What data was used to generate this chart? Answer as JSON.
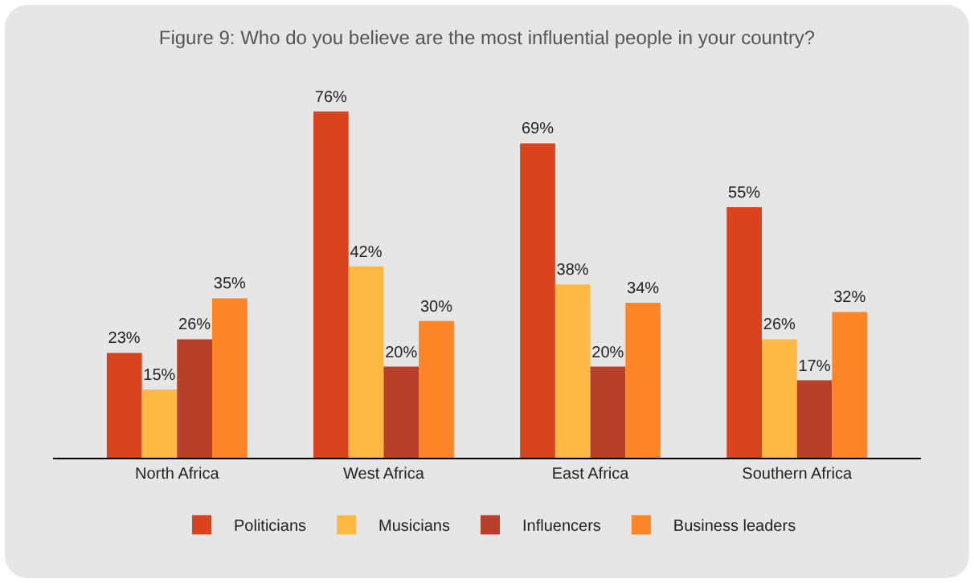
{
  "chart_data": {
    "type": "bar",
    "title": "Figure 9: Who do you believe are the most influential people in your country?",
    "categories": [
      "North Africa",
      "West Africa",
      "East Africa",
      "Southern Africa"
    ],
    "series": [
      {
        "name": "Politicians",
        "color": "#d9441f",
        "values": [
          23,
          76,
          69,
          55
        ],
        "value_labels": [
          "23%",
          "76%",
          "69%",
          "55%"
        ]
      },
      {
        "name": "Musicians",
        "color": "#fdb944",
        "values": [
          15,
          42,
          38,
          26
        ],
        "value_labels": [
          "15%",
          "42%",
          "38%",
          "26%"
        ]
      },
      {
        "name": "Influencers",
        "color": "#b8402a",
        "values": [
          26,
          20,
          20,
          17
        ],
        "value_labels": [
          "26%",
          "20%",
          "20%",
          "17%"
        ]
      },
      {
        "name": "Business leaders",
        "color": "#fc8527",
        "values": [
          35,
          30,
          34,
          32
        ],
        "value_labels": [
          "35%",
          "30%",
          "34%",
          "32%"
        ]
      }
    ],
    "legend": "bottom",
    "grid": false,
    "tick_labels": "x"
  }
}
